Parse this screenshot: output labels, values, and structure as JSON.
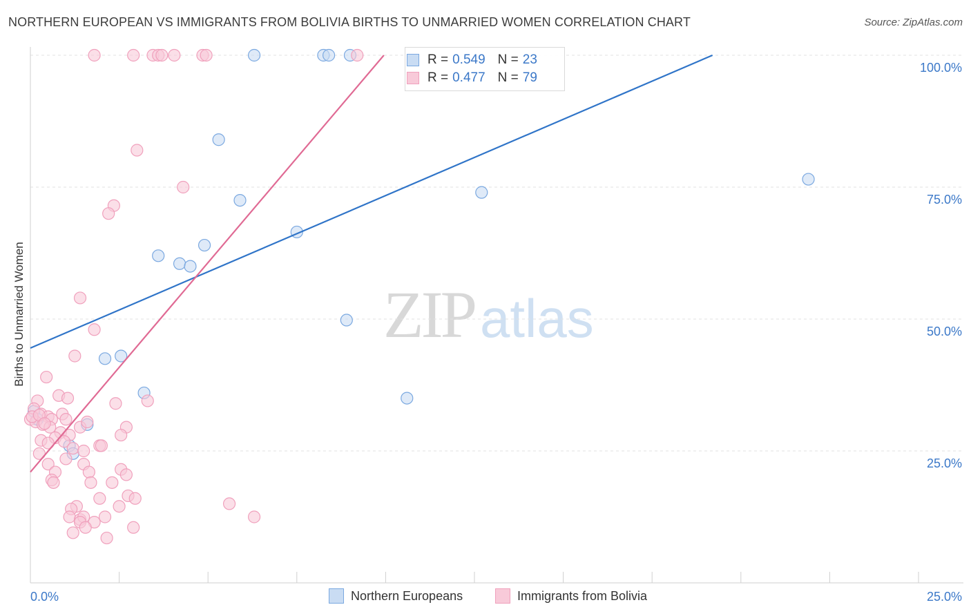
{
  "header": {
    "title": "NORTHERN EUROPEAN VS IMMIGRANTS FROM BOLIVIA BIRTHS TO UNMARRIED WOMEN CORRELATION CHART",
    "source": "Source: ZipAtlas.com"
  },
  "watermark": {
    "zip": "ZIP",
    "atlas": "atlas"
  },
  "legend": {
    "r_label": "R =",
    "n_label": "N =",
    "rows": [
      {
        "r": "0.549",
        "n": "23"
      },
      {
        "r": "0.477",
        "n": "79"
      }
    ]
  },
  "chart_data": {
    "type": "scatter",
    "title": "NORTHERN EUROPEAN VS IMMIGRANTS FROM BOLIVIA BIRTHS TO UNMARRIED WOMEN CORRELATION CHART",
    "xlabel": "",
    "ylabel": "Births to Unmarried Women",
    "xlim": [
      0,
      25
    ],
    "ylim": [
      0,
      100
    ],
    "x_tick_labels": [
      {
        "value": 0,
        "label": "0.0%"
      },
      {
        "value": 25,
        "label": "25.0%"
      }
    ],
    "y_tick_labels": [
      {
        "value": 25,
        "label": "25.0%"
      },
      {
        "value": 50,
        "label": "50.0%"
      },
      {
        "value": 75,
        "label": "75.0%"
      },
      {
        "value": 100,
        "label": "100.0%"
      }
    ],
    "legend_position": "top-center",
    "grid": true,
    "series": [
      {
        "name": "Northern Europeans",
        "color": "#7aa8e0",
        "fill": "#c9dcf3",
        "line_color": "#2f74c8",
        "r": "0.549",
        "n": "23",
        "trend": {
          "x0": 0,
          "y0": 44.5,
          "x1": 19.2,
          "y1": 100
        },
        "points": [
          [
            0.1,
            32.5
          ],
          [
            0.2,
            31.0
          ],
          [
            1.1,
            26.0
          ],
          [
            1.2,
            24.5
          ],
          [
            1.6,
            30.0
          ],
          [
            2.1,
            42.5
          ],
          [
            2.55,
            43.0
          ],
          [
            3.2,
            36.0
          ],
          [
            3.6,
            62.0
          ],
          [
            4.2,
            60.5
          ],
          [
            4.5,
            60.0
          ],
          [
            4.9,
            64.0
          ],
          [
            5.3,
            84.0
          ],
          [
            5.9,
            72.5
          ],
          [
            7.5,
            66.5
          ],
          [
            8.9,
            49.8
          ],
          [
            10.6,
            35.0
          ],
          [
            12.7,
            74.0
          ],
          [
            21.9,
            76.5
          ],
          [
            6.3,
            100
          ],
          [
            8.25,
            100
          ],
          [
            8.4,
            100
          ],
          [
            9.0,
            100
          ]
        ]
      },
      {
        "name": "Immigrants from Bolivia",
        "color": "#f0a0bc",
        "fill": "#f8cad9",
        "line_color": "#e06a94",
        "r": "0.477",
        "n": "79",
        "trend": {
          "x0": 0,
          "y0": 21,
          "x1": 9.95,
          "y1": 100
        },
        "points": [
          [
            1.8,
            100
          ],
          [
            2.9,
            100
          ],
          [
            3.45,
            100
          ],
          [
            3.6,
            100
          ],
          [
            3.7,
            100
          ],
          [
            4.05,
            100
          ],
          [
            4.85,
            100
          ],
          [
            4.95,
            100
          ],
          [
            9.2,
            100
          ],
          [
            3.0,
            82
          ],
          [
            4.3,
            75
          ],
          [
            2.35,
            71.5
          ],
          [
            2.2,
            70
          ],
          [
            1.4,
            54
          ],
          [
            1.8,
            48
          ],
          [
            1.25,
            43
          ],
          [
            0.45,
            39
          ],
          [
            0.2,
            34.5
          ],
          [
            0.8,
            35.5
          ],
          [
            1.05,
            35
          ],
          [
            2.4,
            34
          ],
          [
            3.3,
            34.5
          ],
          [
            0.1,
            33
          ],
          [
            0.3,
            32
          ],
          [
            0.5,
            31.5
          ],
          [
            0.6,
            31
          ],
          [
            0.9,
            32
          ],
          [
            1.0,
            31
          ],
          [
            0.0,
            31
          ],
          [
            0.15,
            30.5
          ],
          [
            0.35,
            30.0
          ],
          [
            0.55,
            29.5
          ],
          [
            0.85,
            28.5
          ],
          [
            1.1,
            28
          ],
          [
            0.7,
            27.5
          ],
          [
            1.4,
            29.5
          ],
          [
            1.6,
            30.5
          ],
          [
            2.7,
            29.5
          ],
          [
            2.55,
            28.0
          ],
          [
            0.3,
            27.0
          ],
          [
            0.5,
            26.5
          ],
          [
            0.95,
            26.8
          ],
          [
            1.2,
            25.5
          ],
          [
            1.5,
            25.0
          ],
          [
            1.95,
            26.0
          ],
          [
            2.0,
            26.0
          ],
          [
            0.25,
            24.5
          ],
          [
            1.0,
            23.5
          ],
          [
            0.5,
            22.5
          ],
          [
            1.5,
            22.5
          ],
          [
            0.7,
            21.0
          ],
          [
            1.65,
            21.0
          ],
          [
            2.55,
            21.5
          ],
          [
            2.7,
            20.5
          ],
          [
            0.6,
            19.5
          ],
          [
            0.65,
            19.0
          ],
          [
            1.7,
            19.0
          ],
          [
            2.3,
            19.0
          ],
          [
            1.95,
            16.0
          ],
          [
            2.75,
            16.5
          ],
          [
            2.95,
            16.0
          ],
          [
            1.3,
            14.5
          ],
          [
            1.15,
            14.0
          ],
          [
            2.5,
            14.5
          ],
          [
            1.1,
            12.5
          ],
          [
            1.4,
            12.0
          ],
          [
            1.5,
            12.5
          ],
          [
            1.8,
            11.5
          ],
          [
            2.1,
            12.5
          ],
          [
            1.4,
            11.5
          ],
          [
            1.55,
            10.5
          ],
          [
            2.9,
            10.5
          ],
          [
            1.2,
            9.5
          ],
          [
            2.15,
            8.5
          ],
          [
            5.6,
            15.0
          ],
          [
            6.3,
            12.5
          ],
          [
            0.05,
            31.5
          ],
          [
            0.25,
            31.8
          ],
          [
            0.4,
            30.2
          ]
        ]
      }
    ]
  }
}
